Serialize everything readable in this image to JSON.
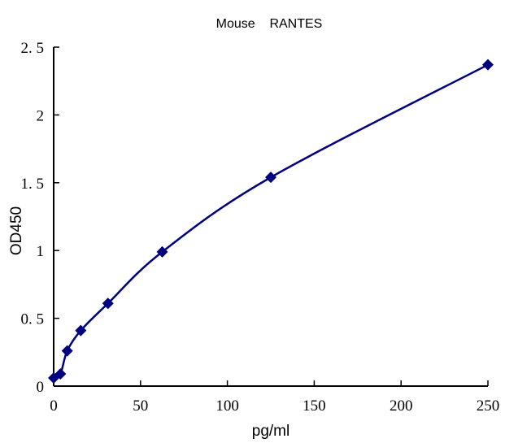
{
  "chart_data": {
    "type": "line",
    "title": "Mouse    RANTES",
    "xlabel": "pg/ml",
    "ylabel": "OD450",
    "xlim": [
      0,
      250
    ],
    "ylim": [
      0,
      2.5
    ],
    "xticks": [
      "0",
      "50",
      "100",
      "150",
      "200",
      "250"
    ],
    "yticks": [
      "0",
      "0. 5",
      "1",
      "1. 5",
      "2",
      "2. 5"
    ],
    "grid": false,
    "color": "#000080",
    "marker": "diamond",
    "smooth": true,
    "x": [
      0,
      3.9,
      7.8,
      15.6,
      31.25,
      62.5,
      125,
      250
    ],
    "y": [
      0.06,
      0.09,
      0.26,
      0.41,
      0.61,
      0.99,
      1.54,
      2.37
    ]
  }
}
